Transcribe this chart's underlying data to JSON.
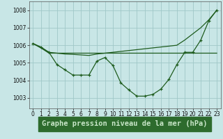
{
  "title": "Graphe pression niveau de la mer (hPa)",
  "bg_color": "#c8e6e6",
  "plot_bg_color": "#c8e6e6",
  "grid_color": "#a0c8c8",
  "line_color": "#1e5c1e",
  "xlabel_bg": "#2d6b2d",
  "xlabel_fg": "#c8e6c8",
  "ylim": [
    1002.4,
    1008.5
  ],
  "yticks": [
    1003,
    1004,
    1005,
    1006,
    1007,
    1008
  ],
  "xlim": [
    -0.5,
    23.5
  ],
  "xticks": [
    0,
    1,
    2,
    3,
    4,
    5,
    6,
    7,
    8,
    9,
    10,
    11,
    12,
    13,
    14,
    15,
    16,
    17,
    18,
    19,
    20,
    21,
    22,
    23
  ],
  "series_main": [
    1006.1,
    1005.9,
    1005.6,
    1004.9,
    1004.6,
    1004.3,
    1004.3,
    1004.3,
    1005.1,
    1005.3,
    1004.85,
    1003.85,
    1003.45,
    1003.1,
    1003.1,
    1003.2,
    1003.5,
    1004.05,
    1004.9,
    1005.6,
    1005.6,
    1006.3,
    1007.4,
    1008.0
  ],
  "series_flat": [
    1006.1,
    1005.85,
    1005.55,
    1005.55,
    1005.55,
    1005.55,
    1005.55,
    1005.55,
    1005.55,
    1005.55,
    1005.55,
    1005.55,
    1005.55,
    1005.55,
    1005.55,
    1005.55,
    1005.55,
    1005.55,
    1005.55,
    1005.55,
    1005.55,
    1005.55,
    1005.55,
    1005.55
  ],
  "series_diag": [
    1006.1,
    1005.85,
    1005.6,
    1005.55,
    1005.5,
    1005.48,
    1005.45,
    1005.42,
    1005.5,
    1005.55,
    1005.6,
    1005.65,
    1005.7,
    1005.75,
    1005.8,
    1005.85,
    1005.9,
    1005.95,
    1006.0,
    1006.3,
    1006.65,
    1007.0,
    1007.45,
    1008.0
  ],
  "tick_fontsize": 5.5,
  "xlabel_fontsize": 7.5
}
